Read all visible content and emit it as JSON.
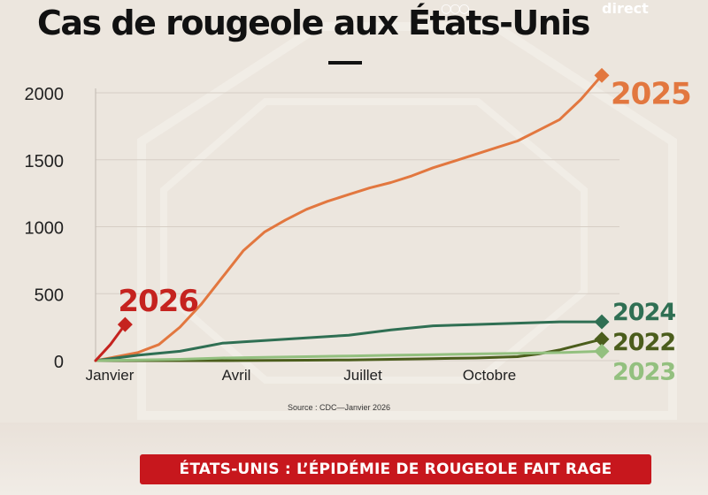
{
  "title": "Cas de rougeole aux États-Unis",
  "channel_label": "direct",
  "source": "Source : CDC—Janvier 2026",
  "banner": "ÉTATS-UNIS : L’ÉPIDÉMIE DE ROUGEOLE FAIT RAGE",
  "colors": {
    "2025": "#e2773f",
    "2024": "#2f6f53",
    "2022": "#4b5d1c",
    "2023": "#93c07f",
    "2026": "#c5231f",
    "banner": "#c7171d"
  },
  "chart_data": {
    "type": "line",
    "title": "Cas de rougeole aux États-Unis",
    "xlabel": "",
    "ylabel": "",
    "x_ticks": [
      "Janvier",
      "Avril",
      "Juillet",
      "Octobre"
    ],
    "x_tick_values": [
      1,
      4,
      7,
      10
    ],
    "xlim": [
      1,
      13
    ],
    "ylim": [
      0,
      2000
    ],
    "y_ticks": [
      0,
      500,
      1000,
      1500,
      2000
    ],
    "grid": true,
    "series": [
      {
        "name": "2025",
        "x": [
          1,
          1.5,
          2,
          2.5,
          3,
          3.5,
          4,
          4.5,
          5,
          5.5,
          6,
          6.5,
          7,
          7.5,
          8,
          8.5,
          9,
          9.5,
          10,
          10.5,
          11,
          11.5,
          12,
          12.5,
          13
        ],
        "y": [
          0,
          30,
          60,
          120,
          250,
          420,
          620,
          820,
          960,
          1050,
          1130,
          1190,
          1240,
          1290,
          1330,
          1380,
          1440,
          1490,
          1540,
          1590,
          1640,
          1720,
          1800,
          1950,
          2130
        ]
      },
      {
        "name": "2024",
        "x": [
          1,
          2,
          3,
          3.5,
          4,
          4.5,
          5,
          6,
          7,
          8,
          9,
          10,
          11,
          12,
          13
        ],
        "y": [
          0,
          40,
          70,
          100,
          130,
          140,
          150,
          170,
          190,
          230,
          260,
          270,
          280,
          290,
          290
        ]
      },
      {
        "name": "2022",
        "x": [
          1,
          2,
          3,
          4,
          5,
          6,
          7,
          8,
          9,
          10,
          11,
          11.5,
          12,
          12.5,
          13
        ],
        "y": [
          0,
          0,
          0,
          0,
          2,
          3,
          5,
          10,
          15,
          20,
          30,
          50,
          80,
          120,
          160
        ]
      },
      {
        "name": "2023",
        "x": [
          1,
          2,
          3,
          4,
          5,
          6,
          7,
          8,
          9,
          10,
          11,
          12,
          13
        ],
        "y": [
          0,
          5,
          10,
          20,
          25,
          30,
          35,
          40,
          45,
          50,
          55,
          60,
          70
        ]
      },
      {
        "name": "2026",
        "x": [
          1,
          1.35,
          1.7
        ],
        "y": [
          0,
          120,
          270
        ]
      }
    ]
  }
}
